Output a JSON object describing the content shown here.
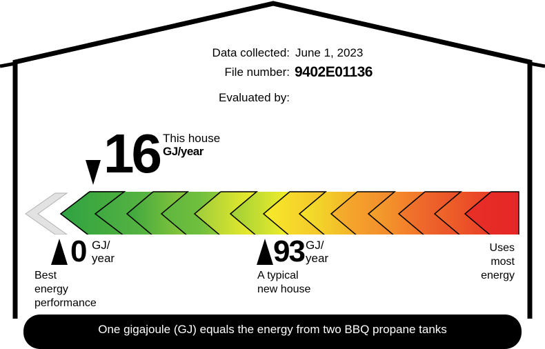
{
  "info": {
    "data_collected_label": "Data collected:",
    "data_collected_value": "June 1, 2023",
    "file_number_label": "File number:",
    "file_number_value": "9402E01136",
    "evaluated_by_label": "Evaluated by:"
  },
  "rating": {
    "value": "16",
    "label": "This house",
    "unit": "GJ/year"
  },
  "scale": {
    "min_value": "0",
    "min_unit_line1": "GJ/",
    "min_unit_line2": "year",
    "min_desc_line1": "Best",
    "min_desc_line2": "energy",
    "min_desc_line3": "performance",
    "typical_value": "93",
    "typical_unit_line1": "GJ/",
    "typical_unit_line2": "year",
    "typical_desc_line1": "A typical",
    "typical_desc_line2": "new house",
    "max_desc_line1": "Uses",
    "max_desc_line2": "most",
    "max_desc_line3": "energy"
  },
  "footer": {
    "text": "One gigajoule (GJ) equals the energy from two BBQ propane tanks"
  },
  "colors": {
    "grey": "#e1e1e1",
    "green": "#3aa63e",
    "yellow": "#f3ee2a",
    "orange": "#f3832b",
    "red": "#e52626"
  }
}
